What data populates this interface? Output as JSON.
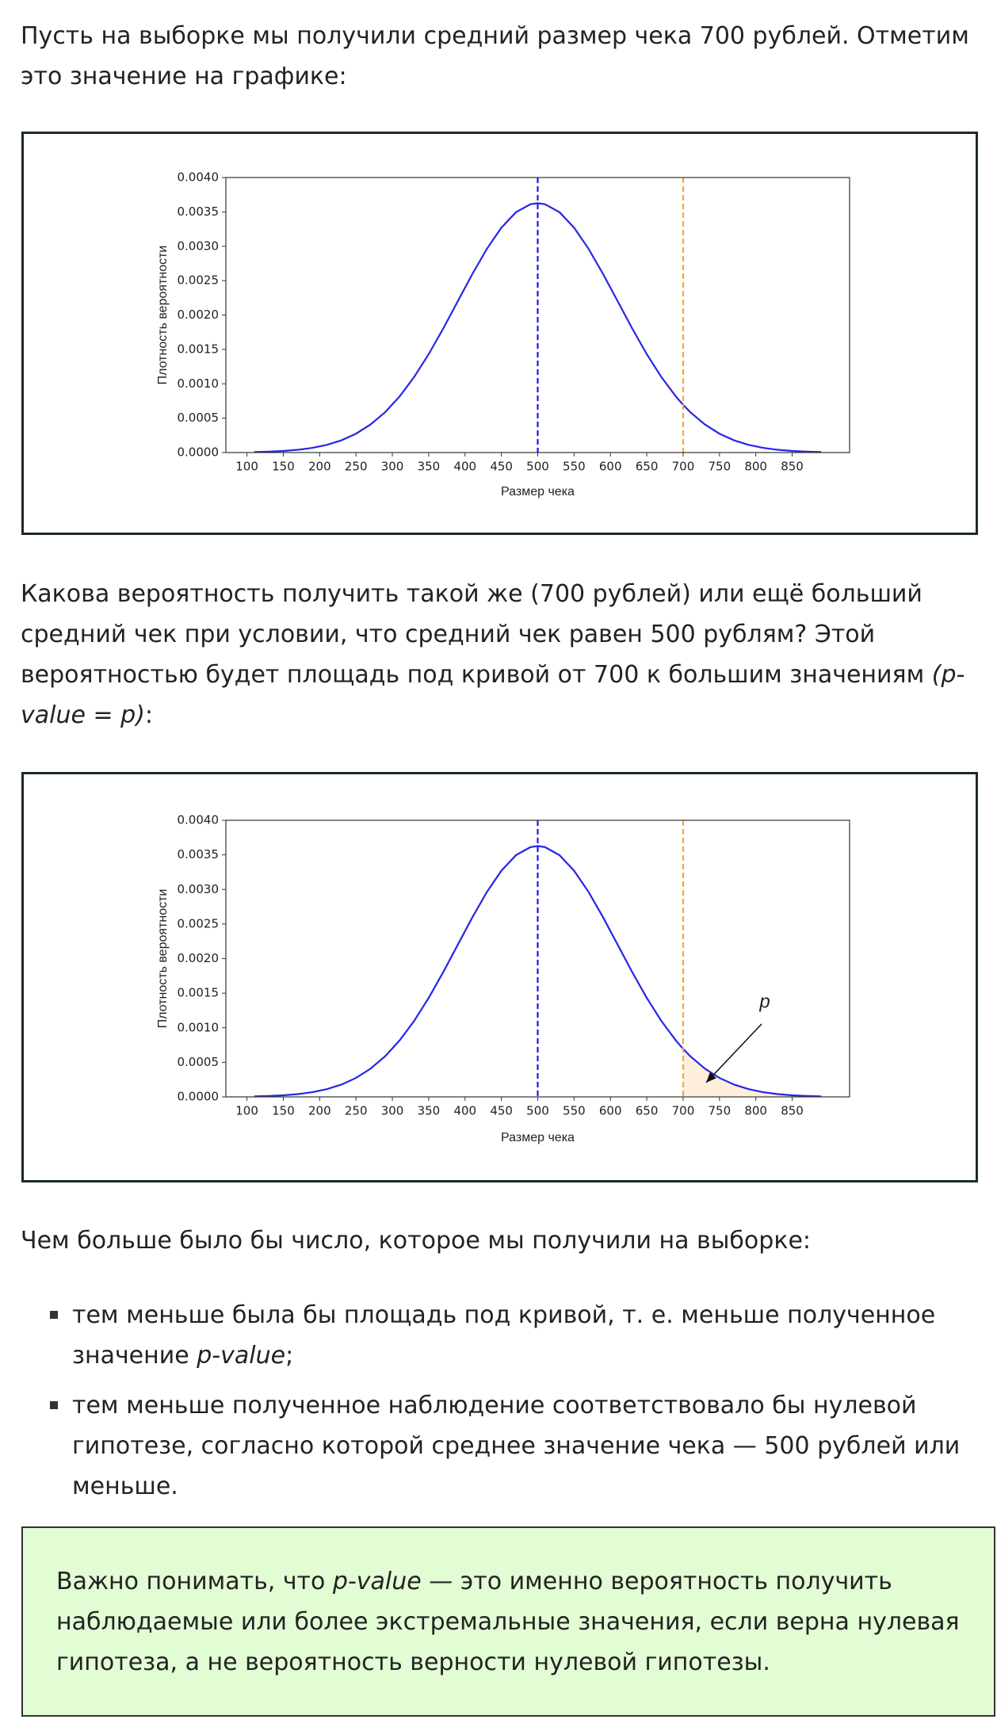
{
  "intro_text": "Пусть на выборке мы получили средний размер чека 700 рублей. Отметим это значение на графике:",
  "question": [
    "Какова вероятность получить такой же (700 рублей) или ещё больший средний чек при условии, что средний чек равен 500 рублям? Этой вероятностью будет площадь под кривой от 700 к большим значениям ",
    "(p-value = p)",
    ":"
  ],
  "lead_in": "Чем больше было бы число, которое мы получили на выборке:",
  "bullets": [
    [
      "тем меньше была бы площадь под кривой, т. е. меньше полученное значение ",
      "p-value",
      ";"
    ],
    [
      "тем меньше полученное наблюдение соответствовало бы нулевой гипотезе, согласно которой среднее значение чека — 500 рублей или меньше."
    ]
  ],
  "note": [
    "Важно понимать, что ",
    "p-value",
    " — это именно вероятность получить наблюдаемые или более экстремальные значения, если верна нулевая гипотеза, а не вероятность верности нулевой гипотезы."
  ],
  "chart_data": [
    {
      "type": "line",
      "x_label": "Размер чека",
      "y_label": "Плотность вероятности",
      "x": [
        110,
        130,
        150,
        170,
        190,
        210,
        230,
        250,
        270,
        290,
        310,
        330,
        350,
        370,
        390,
        410,
        430,
        450,
        470,
        490,
        500,
        510,
        530,
        550,
        570,
        590,
        610,
        630,
        650,
        670,
        690,
        700,
        710,
        730,
        750,
        770,
        790,
        810,
        830,
        850,
        870,
        890
      ],
      "series": [
        {
          "color": "#2626e8",
          "values": [
            7e-06,
            1.3e-05,
            2.3e-05,
            4e-05,
            6.8e-05,
            0.000112,
            0.000178,
            0.000274,
            0.000408,
            0.000586,
            0.000816,
            0.001099,
            0.001431,
            0.001804,
            0.0022,
            0.002595,
            0.002962,
            0.003271,
            0.003495,
            0.003612,
            0.003627,
            0.003612,
            0.003495,
            0.003271,
            0.002962,
            0.002595,
            0.0022,
            0.001804,
            0.001431,
            0.001099,
            0.000816,
            0.000695,
            0.000586,
            0.000408,
            0.000274,
            0.000178,
            0.000112,
            6.8e-05,
            4e-05,
            2.3e-05,
            1.3e-05,
            7e-06
          ]
        }
      ],
      "vlines": [
        {
          "x": 500,
          "color": "#1a1aee"
        },
        {
          "x": 700,
          "color": "#f2a93b"
        }
      ],
      "xlim": [
        71,
        929
      ],
      "ylim": [
        0,
        0.004
      ],
      "xticks": [
        100,
        150,
        200,
        250,
        300,
        350,
        400,
        450,
        500,
        550,
        600,
        650,
        700,
        750,
        800,
        850
      ],
      "yticks": [
        {
          "value": 0,
          "label": "0.0000"
        },
        {
          "value": 0.0005,
          "label": "0.0005"
        },
        {
          "value": 0.001,
          "label": "0.0010"
        },
        {
          "value": 0.0015,
          "label": "0.0015"
        },
        {
          "value": 0.002,
          "label": "0.0020"
        },
        {
          "value": 0.0025,
          "label": "0.0025"
        },
        {
          "value": 0.003,
          "label": "0.0030"
        },
        {
          "value": 0.0035,
          "label": "0.0035"
        },
        {
          "value": 0.004,
          "label": "0.0040"
        }
      ]
    },
    {
      "type": "line",
      "x_label": "Размер чека",
      "y_label": "Плотность вероятности",
      "x": [
        110,
        130,
        150,
        170,
        190,
        210,
        230,
        250,
        270,
        290,
        310,
        330,
        350,
        370,
        390,
        410,
        430,
        450,
        470,
        490,
        500,
        510,
        530,
        550,
        570,
        590,
        610,
        630,
        650,
        670,
        690,
        700,
        710,
        730,
        750,
        770,
        790,
        810,
        830,
        850,
        870,
        890
      ],
      "series": [
        {
          "color": "#2626e8",
          "values": [
            7e-06,
            1.3e-05,
            2.3e-05,
            4e-05,
            6.8e-05,
            0.000112,
            0.000178,
            0.000274,
            0.000408,
            0.000586,
            0.000816,
            0.001099,
            0.001431,
            0.001804,
            0.0022,
            0.002595,
            0.002962,
            0.003271,
            0.003495,
            0.003612,
            0.003627,
            0.003612,
            0.003495,
            0.003271,
            0.002962,
            0.002595,
            0.0022,
            0.001804,
            0.001431,
            0.001099,
            0.000816,
            0.000695,
            0.000586,
            0.000408,
            0.000274,
            0.000178,
            0.000112,
            6.8e-05,
            4e-05,
            2.3e-05,
            1.3e-05,
            7e-06
          ]
        }
      ],
      "vlines": [
        {
          "x": 500,
          "color": "#1a1aee"
        },
        {
          "x": 700,
          "color": "#f2a93b"
        }
      ],
      "shade_from": 700,
      "shade_color": "#fdefdc",
      "annotation": "p",
      "xlim": [
        71,
        929
      ],
      "ylim": [
        0,
        0.004
      ],
      "xticks": [
        100,
        150,
        200,
        250,
        300,
        350,
        400,
        450,
        500,
        550,
        600,
        650,
        700,
        750,
        800,
        850
      ],
      "yticks": [
        {
          "value": 0,
          "label": "0.0000"
        },
        {
          "value": 0.0005,
          "label": "0.0005"
        },
        {
          "value": 0.001,
          "label": "0.0010"
        },
        {
          "value": 0.0015,
          "label": "0.0015"
        },
        {
          "value": 0.002,
          "label": "0.0020"
        },
        {
          "value": 0.0025,
          "label": "0.0025"
        },
        {
          "value": 0.003,
          "label": "0.0030"
        },
        {
          "value": 0.0035,
          "label": "0.0035"
        },
        {
          "value": 0.004,
          "label": "0.0040"
        }
      ]
    }
  ]
}
